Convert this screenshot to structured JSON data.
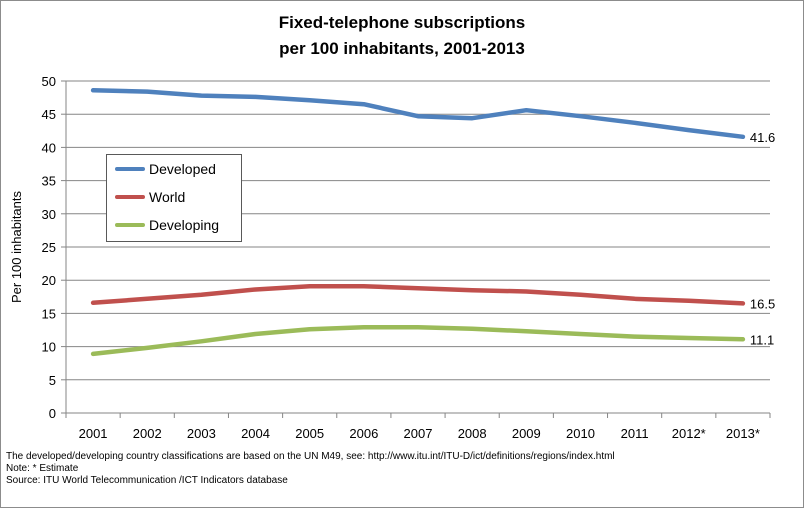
{
  "chart_data": {
    "type": "line",
    "title_lines": [
      "Fixed-telephone subscriptions",
      "per 100 inhabitants, 2001-2013"
    ],
    "xlabel": "",
    "ylabel": "Per 100 inhabitants",
    "categories": [
      "2001",
      "2002",
      "2003",
      "2004",
      "2005",
      "2006",
      "2007",
      "2008",
      "2009",
      "2010",
      "2011",
      "2012*",
      "2013*"
    ],
    "ylim": [
      0,
      50
    ],
    "yticks": [
      0,
      5,
      10,
      15,
      20,
      25,
      30,
      35,
      40,
      45,
      50
    ],
    "grid": "horizontal",
    "legend_position": "left-middle",
    "series": [
      {
        "name": "Developed",
        "color": "#4f81bd",
        "values": [
          48.6,
          48.4,
          47.8,
          47.6,
          47.1,
          46.5,
          44.7,
          44.4,
          45.6,
          44.7,
          43.7,
          42.6,
          41.6
        ],
        "end_label": "41.6"
      },
      {
        "name": "World",
        "color": "#c0504d",
        "values": [
          16.6,
          17.2,
          17.8,
          18.6,
          19.1,
          19.1,
          18.8,
          18.5,
          18.3,
          17.8,
          17.2,
          16.9,
          16.5
        ],
        "end_label": "16.5"
      },
      {
        "name": "Developing",
        "color": "#9bbb59",
        "values": [
          8.9,
          9.8,
          10.8,
          11.9,
          12.6,
          12.9,
          12.9,
          12.7,
          12.3,
          11.9,
          11.5,
          11.3,
          11.1
        ],
        "end_label": "11.1"
      }
    ]
  },
  "footnotes": [
    "The developed/developing country classifications are based on the UN M49, see: http://www.itu.int/ITU-D/ict/definitions/regions/index.html",
    "Note: * Estimate",
    "Source: ITU World Telecommunication /ICT Indicators database"
  ]
}
